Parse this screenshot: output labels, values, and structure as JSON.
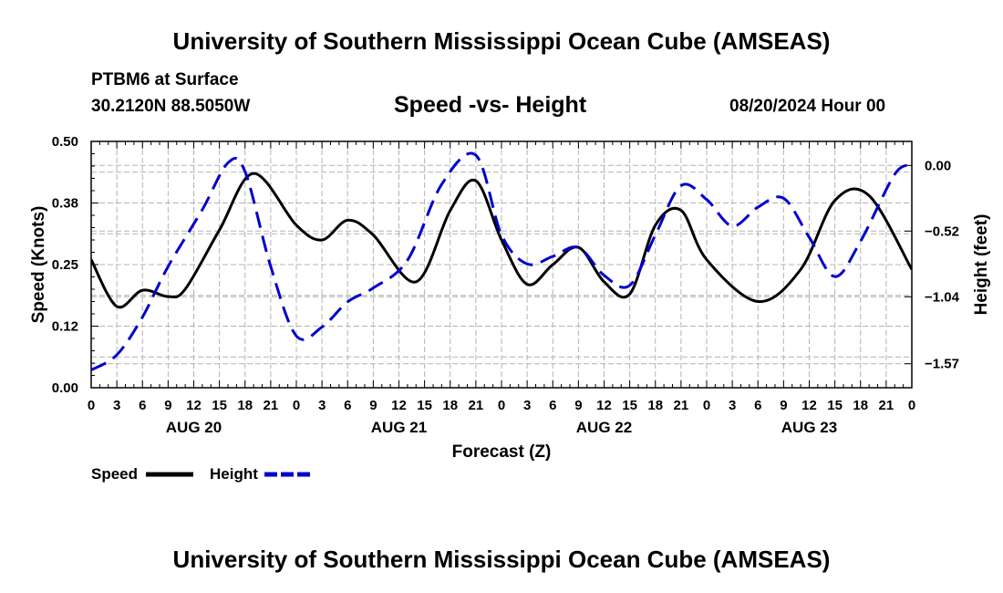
{
  "header": {
    "title": "University of Southern Mississippi Ocean Cube (AMSEAS)",
    "station": "PTBM6 at Surface",
    "coordinates": "30.2120N  88.5050W",
    "chart_title": "Speed -vs- Height",
    "datetime": "08/20/2024 Hour 00"
  },
  "footer": {
    "title": "University of Southern Mississippi Ocean Cube (AMSEAS)"
  },
  "colors": {
    "speed": "#000000",
    "height": "#0000cc",
    "grid": "#b4b4b4"
  },
  "chart_data": {
    "type": "line",
    "title": "Speed -vs- Height",
    "xlabel": "Forecast (Z)",
    "ylabel": "Speed (Knots)",
    "ylabel_right": "Height (feet)",
    "x_range_hours": [
      0,
      96
    ],
    "ylim": [
      0,
      0.5
    ],
    "ylim_right": [
      -1.76,
      0.19
    ],
    "x_tick_labels": [
      "0",
      "3",
      "6",
      "9",
      "12",
      "15",
      "18",
      "21",
      "0",
      "3",
      "6",
      "9",
      "12",
      "15",
      "18",
      "21",
      "0",
      "3",
      "6",
      "9",
      "12",
      "15",
      "18",
      "21",
      "0",
      "3",
      "6",
      "9",
      "12",
      "15",
      "18",
      "21",
      "0"
    ],
    "day_labels": [
      {
        "label": "AUG 20",
        "hour": 12
      },
      {
        "label": "AUG 21",
        "hour": 36
      },
      {
        "label": "AUG 22",
        "hour": 60
      },
      {
        "label": "AUG 23",
        "hour": 84
      }
    ],
    "y_ticks_left": [
      {
        "value": 0.0,
        "label": "0.00"
      },
      {
        "value": 0.125,
        "label": "0.12"
      },
      {
        "value": 0.25,
        "label": "0.25"
      },
      {
        "value": 0.375,
        "label": "0.38"
      },
      {
        "value": 0.5,
        "label": "0.50"
      }
    ],
    "y_ticks_right": [
      {
        "value": 0.0,
        "label": "0.00"
      },
      {
        "value": -0.52,
        "label": "−0.52"
      },
      {
        "value": -1.04,
        "label": "−1.04"
      },
      {
        "value": -1.57,
        "label": "−1.57"
      }
    ],
    "series": [
      {
        "name": "Speed",
        "axis": "left",
        "style": "solid",
        "x": [
          0,
          3,
          6,
          9,
          11,
          15,
          19,
          24,
          27,
          30,
          33,
          38,
          42,
          45,
          48,
          51,
          54,
          57,
          60,
          63,
          66,
          69,
          72,
          78,
          83,
          87,
          91,
          96
        ],
        "y": [
          0.26,
          0.165,
          0.198,
          0.185,
          0.2,
          0.32,
          0.435,
          0.33,
          0.3,
          0.34,
          0.31,
          0.215,
          0.36,
          0.42,
          0.3,
          0.21,
          0.25,
          0.285,
          0.215,
          0.19,
          0.33,
          0.36,
          0.26,
          0.175,
          0.24,
          0.38,
          0.39,
          0.24
        ]
      },
      {
        "name": "Height",
        "axis": "right",
        "style": "dashed",
        "x": [
          0,
          3,
          6,
          9,
          13,
          16,
          18,
          21,
          24,
          27,
          30,
          33,
          37,
          41,
          45,
          48,
          51,
          54,
          57,
          60,
          63,
          66,
          69,
          72,
          75,
          78,
          81,
          84,
          87,
          90,
          94,
          96
        ],
        "y": [
          -1.62,
          -1.5,
          -1.2,
          -0.8,
          -0.35,
          0.02,
          -0.05,
          -0.8,
          -1.35,
          -1.28,
          -1.08,
          -0.97,
          -0.75,
          -0.15,
          0.08,
          -0.55,
          -0.78,
          -0.72,
          -0.65,
          -0.87,
          -0.95,
          -0.55,
          -0.16,
          -0.27,
          -0.48,
          -0.33,
          -0.26,
          -0.57,
          -0.88,
          -0.6,
          -0.07,
          0.0
        ]
      }
    ],
    "legend": [
      {
        "label": "Speed",
        "style": "solid"
      },
      {
        "label": "Height",
        "style": "dashed"
      }
    ],
    "legend_position": "bottom-left",
    "grid": true
  }
}
